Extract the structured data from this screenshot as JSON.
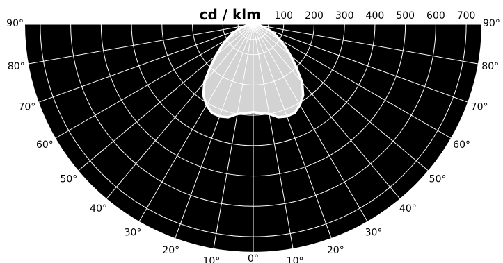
{
  "chart_data": {
    "type": "polar-intensity",
    "unit_label": "cd / klm",
    "radial_ticks": [
      100,
      200,
      300,
      400,
      500,
      600,
      700
    ],
    "angle_ticks": [
      {
        "angle": 90,
        "label": "90°"
      },
      {
        "angle": 80,
        "label": "80°"
      },
      {
        "angle": 70,
        "label": "70°"
      },
      {
        "angle": 60,
        "label": "60°"
      },
      {
        "angle": 50,
        "label": "50°"
      },
      {
        "angle": 40,
        "label": "40°"
      },
      {
        "angle": 30,
        "label": "30°"
      },
      {
        "angle": 20,
        "label": "20°"
      },
      {
        "angle": 10,
        "label": "10°"
      },
      {
        "angle": 0,
        "label": "0°"
      }
    ],
    "rmax": 750,
    "series": [
      {
        "values": [
          {
            "angle": 0,
            "intensity": 290
          },
          {
            "angle": 5,
            "intensity": 294
          },
          {
            "angle": 10,
            "intensity": 300
          },
          {
            "angle": 15,
            "intensity": 317
          },
          {
            "angle": 20,
            "intensity": 323
          },
          {
            "angle": 25,
            "intensity": 322
          },
          {
            "angle": 30,
            "intensity": 307
          },
          {
            "angle": 35,
            "intensity": 286
          },
          {
            "angle": 40,
            "intensity": 250
          },
          {
            "angle": 45,
            "intensity": 200
          },
          {
            "angle": 50,
            "intensity": 160
          },
          {
            "angle": 55,
            "intensity": 128
          },
          {
            "angle": 60,
            "intensity": 100
          },
          {
            "angle": 65,
            "intensity": 78
          },
          {
            "angle": 70,
            "intensity": 57
          },
          {
            "angle": 75,
            "intensity": 37
          },
          {
            "angle": 80,
            "intensity": 20
          },
          {
            "angle": 85,
            "intensity": 7
          },
          {
            "angle": 90,
            "intensity": 0
          }
        ]
      }
    ],
    "colors": {
      "background": "#000000",
      "grid": "#ffffff",
      "fill": "#d3d3d3",
      "outline": "#ffffff"
    }
  }
}
